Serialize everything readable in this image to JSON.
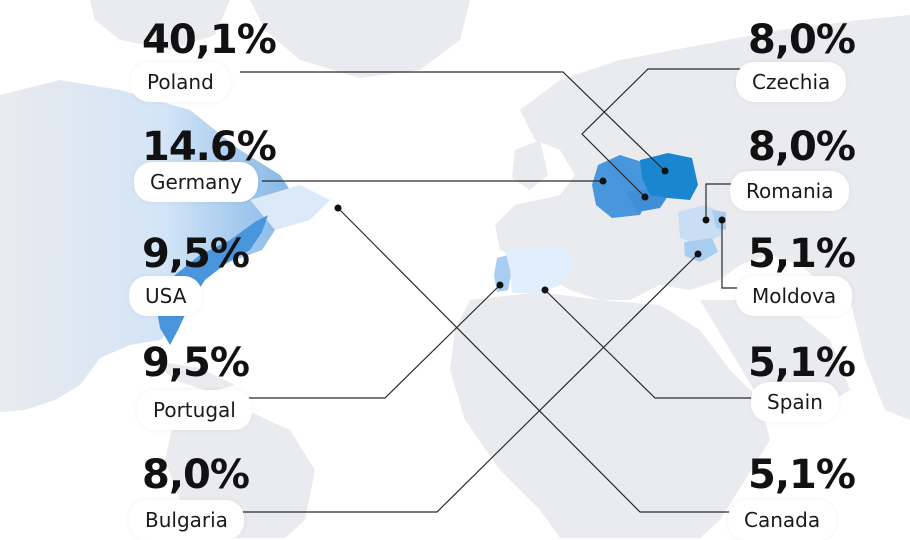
{
  "map": {
    "colors": {
      "land": "#e9eaed",
      "water": "#ffffff",
      "highlight_dark": "#1a86d0",
      "highlight_mid": "#4a96dc",
      "highlight_light": "#a9cdf0",
      "highlight_pale": "#e1eefb",
      "connector": "#2a2a2a",
      "dot": "#111111"
    },
    "countries": [
      {
        "id": "poland",
        "name": "Poland",
        "share": "40,1%"
      },
      {
        "id": "germany",
        "name": "Germany",
        "share": "14.6%"
      },
      {
        "id": "usa",
        "name": "USA",
        "share": "9,5%"
      },
      {
        "id": "portugal",
        "name": "Portugal",
        "share": "9,5%"
      },
      {
        "id": "bulgaria",
        "name": "Bulgaria",
        "share": "8,0%"
      },
      {
        "id": "czechia",
        "name": "Czechia",
        "share": "8,0%"
      },
      {
        "id": "romania",
        "name": "Romania",
        "share": "8,0%"
      },
      {
        "id": "moldova",
        "name": "Moldova",
        "share": "5,1%"
      },
      {
        "id": "spain",
        "name": "Spain",
        "share": "5,1%"
      },
      {
        "id": "canada",
        "name": "Canada",
        "share": "5,1%"
      }
    ]
  }
}
